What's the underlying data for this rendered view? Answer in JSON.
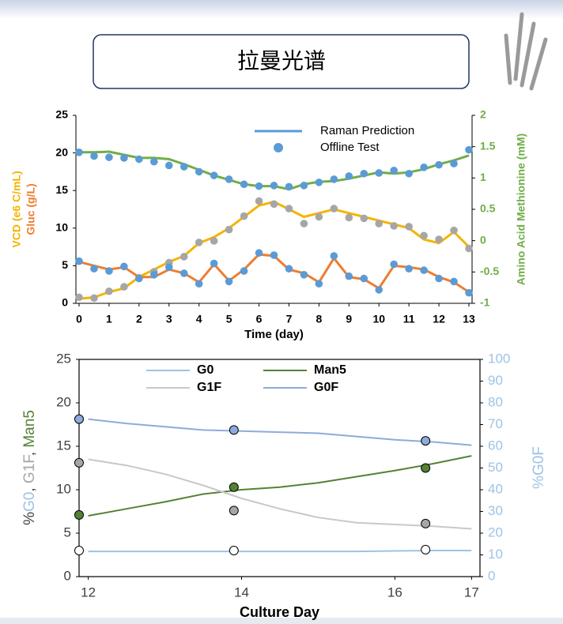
{
  "slide_title": "拉曼光谱",
  "chart_data": [
    {
      "type": "line",
      "x": [
        0,
        0.5,
        1,
        1.5,
        2,
        2.5,
        3,
        3.5,
        4,
        4.5,
        5,
        5.5,
        6,
        6.5,
        7,
        7.5,
        8,
        8.5,
        9,
        9.5,
        10,
        10.5,
        11,
        11.5,
        12,
        12.5,
        13
      ],
      "xlim": [
        0,
        13
      ],
      "xticks": [
        0,
        1,
        2,
        3,
        4,
        5,
        6,
        7,
        8,
        9,
        10,
        11,
        12,
        13
      ],
      "xlabel": "Time (day)",
      "ylim": [
        0,
        25
      ],
      "yticks": [
        0,
        5,
        10,
        15,
        20,
        25
      ],
      "ylabels": [
        {
          "text": "VCD (e6 C/mL)",
          "color": "#f4b400"
        },
        {
          "text": "Gluc (g/L)",
          "color": "#ed7d31"
        }
      ],
      "y2lim": [
        -1,
        2
      ],
      "y2ticks": [
        -1,
        -0.5,
        0,
        0.5,
        1,
        1.5,
        2
      ],
      "y2label": {
        "text": "Amino Acid Methionine (mM)",
        "color": "#70ad47"
      },
      "legend": [
        {
          "name": "Raman Prediction",
          "color": "#5b9bd5",
          "style": "line"
        },
        {
          "name": "Offline Test",
          "color": "#5b9bd5",
          "style": "dots"
        }
      ],
      "series": [
        {
          "style": "line",
          "color": "#f4b400",
          "values": [
            0.6,
            0.8,
            1.5,
            2,
            3.5,
            4.5,
            5.5,
            6.3,
            8,
            8.8,
            10,
            11.5,
            13,
            13.5,
            12.5,
            11.5,
            12,
            12.5,
            12,
            11.5,
            11,
            10.5,
            10,
            8.5,
            8,
            9.5,
            7.5
          ]
        },
        {
          "style": "dots",
          "color": "#a6a6a6",
          "values": [
            0.8,
            0.7,
            1.6,
            2.2,
            3.4,
            4.2,
            5.4,
            6.2,
            8.1,
            8.3,
            9.8,
            11.6,
            13.6,
            13.2,
            12.6,
            10.6,
            11.5,
            12.6,
            11.4,
            11.3,
            10.6,
            10.3,
            10.2,
            9.0,
            8.5,
            9.7,
            7.3
          ]
        },
        {
          "style": "line",
          "color": "#ed7d31",
          "values": [
            5.5,
            5,
            4.5,
            4.8,
            3.5,
            3.5,
            4.5,
            4,
            2.8,
            5.2,
            3,
            4.5,
            6.5,
            6.3,
            4.5,
            4,
            2.8,
            6,
            3.5,
            3.2,
            2,
            5,
            4.8,
            4.5,
            3.5,
            2.8,
            1.5
          ]
        },
        {
          "style": "dots",
          "color": "#5b9bd5",
          "values": [
            5.6,
            4.6,
            4.3,
            4.9,
            3.3,
            3.8,
            4.8,
            4.0,
            2.6,
            5.3,
            2.9,
            4.3,
            6.7,
            6.4,
            4.6,
            3.8,
            2.6,
            6.3,
            3.6,
            3.3,
            1.8,
            5.2,
            4.6,
            4.4,
            3.3,
            2.9,
            1.4
          ]
        },
        {
          "style": "line",
          "color": "#70ad47",
          "axis": "y2",
          "values": [
            1.41,
            1.41,
            1.42,
            1.37,
            1.32,
            1.32,
            1.3,
            1.22,
            1.13,
            1.04,
            0.97,
            0.9,
            0.87,
            0.87,
            0.82,
            0.9,
            0.94,
            0.95,
            0.99,
            1.04,
            1.09,
            1.07,
            1.09,
            1.14,
            1.22,
            1.28,
            1.36
          ]
        },
        {
          "style": "dots",
          "color": "#5b9bd5",
          "axis": "y2",
          "values": [
            1.41,
            1.35,
            1.33,
            1.32,
            1.3,
            1.26,
            1.2,
            1.18,
            1.1,
            1.04,
            0.98,
            0.9,
            0.87,
            0.88,
            0.86,
            0.88,
            0.93,
            0.98,
            1.03,
            1.07,
            1.08,
            1.12,
            1.07,
            1.17,
            1.21,
            1.23,
            1.45
          ]
        }
      ]
    },
    {
      "type": "line",
      "xlim": [
        11.88,
        17.11
      ],
      "xticks": [
        12,
        14,
        16,
        17
      ],
      "xlabel": "Culture Day",
      "ylim": [
        0,
        25
      ],
      "yticks": [
        0,
        5,
        10,
        15,
        20,
        25
      ],
      "ylabel_parts": [
        {
          "text": "%",
          "color": "#404040"
        },
        {
          "text": "G0",
          "color": "#9dc3e6"
        },
        {
          "text": ", ",
          "color": "#404040"
        },
        {
          "text": "G1F",
          "color": "#a6a6a6"
        },
        {
          "text": ", ",
          "color": "#404040"
        },
        {
          "text": "Man5",
          "color": "#548235"
        }
      ],
      "y2lim": [
        0,
        100
      ],
      "y2ticks": [
        0,
        10,
        20,
        30,
        40,
        50,
        60,
        70,
        80,
        90,
        100
      ],
      "y2label": {
        "text": "%G0F",
        "color": "#9dc3e6"
      },
      "series": [
        {
          "name": "G0",
          "color": "#9dc3e6",
          "marker_color": "#ffffff",
          "x": [
            12,
            12.5,
            13,
            13.5,
            14,
            14.5,
            15,
            15.5,
            16,
            16.5,
            17
          ],
          "values": [
            2.9,
            2.9,
            2.9,
            2.9,
            2.9,
            2.9,
            2.9,
            2.9,
            2.95,
            3.0,
            3.0
          ],
          "marker_x": [
            11.88,
            13.9,
            16.4
          ],
          "marker_values": [
            3,
            3,
            3.1
          ]
        },
        {
          "name": "Man5",
          "color": "#548235",
          "marker_color": "#548235",
          "x": [
            12,
            12.5,
            13,
            13.5,
            14,
            14.5,
            15,
            15.5,
            16,
            16.5,
            17
          ],
          "values": [
            7.0,
            7.8,
            8.6,
            9.5,
            10.0,
            10.3,
            10.8,
            11.5,
            12.2,
            13.0,
            13.9
          ],
          "marker_x": [
            11.88,
            13.9,
            16.4
          ],
          "marker_values": [
            7.1,
            10.3,
            12.5
          ]
        },
        {
          "name": "G1F",
          "color": "#c8c8c8",
          "marker_color": "#a6a6a6",
          "x": [
            12,
            12.5,
            13,
            13.5,
            14,
            14.5,
            15,
            15.5,
            16,
            16.5,
            17
          ],
          "values": [
            13.5,
            12.8,
            11.8,
            10.5,
            9.0,
            7.8,
            6.8,
            6.2,
            6.0,
            5.8,
            5.5
          ],
          "marker_x": [
            11.88,
            13.9,
            16.4
          ],
          "marker_values": [
            13.1,
            7.6,
            6.1
          ]
        },
        {
          "name": "G0F",
          "color": "#8faadc",
          "marker_color": "#8faadc",
          "axis": "y2",
          "x": [
            12,
            12.5,
            13,
            13.5,
            14,
            14.5,
            15,
            15.5,
            16,
            16.5,
            17
          ],
          "values": [
            72.5,
            70.5,
            69,
            67.5,
            67,
            66.5,
            66,
            64.5,
            63,
            62,
            60.5
          ],
          "marker_x": [
            11.88,
            13.9,
            16.4
          ],
          "marker_values": [
            72.5,
            67.5,
            62.5
          ]
        }
      ]
    }
  ]
}
